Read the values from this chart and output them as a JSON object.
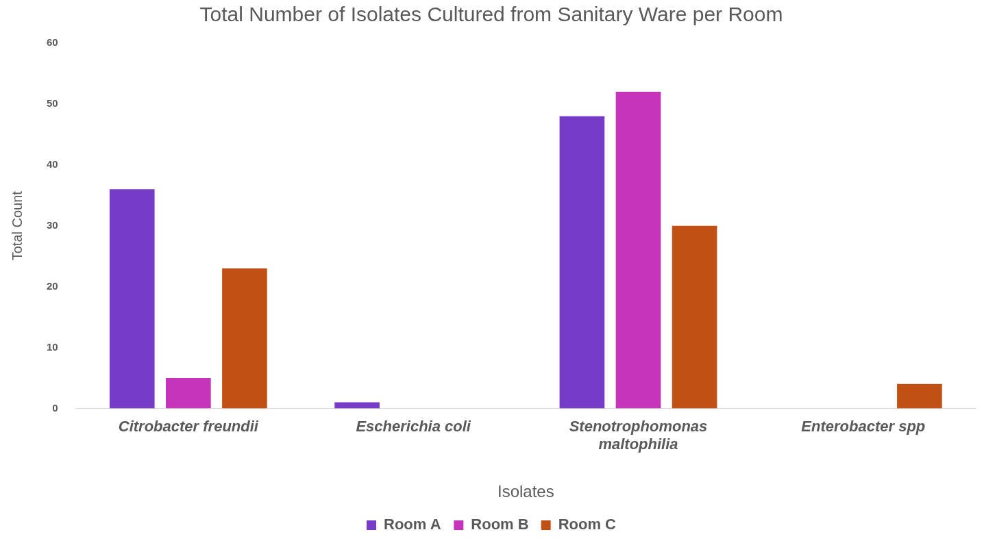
{
  "chart_data": {
    "type": "bar",
    "title": "Total Number of Isolates Cultured from Sanitary Ware per Room",
    "xlabel": "Isolates",
    "ylabel": "Total Count",
    "categories": [
      "Citrobacter freundii",
      "Escherichia coli",
      "Stenotrophomonas maltophilia",
      "Enterobacter spp"
    ],
    "series": [
      {
        "name": "Room A",
        "color": "#763cc8",
        "values": [
          36,
          1,
          48,
          0
        ]
      },
      {
        "name": "Room B",
        "color": "#c634b9",
        "values": [
          5,
          0,
          52,
          0
        ]
      },
      {
        "name": "Room C",
        "color": "#c05014",
        "values": [
          23,
          0,
          30,
          4
        ]
      }
    ],
    "ylim": [
      0,
      60
    ],
    "yticks": [
      0,
      10,
      20,
      30,
      40,
      50,
      60
    ],
    "grid": false,
    "legend": "bottom"
  }
}
